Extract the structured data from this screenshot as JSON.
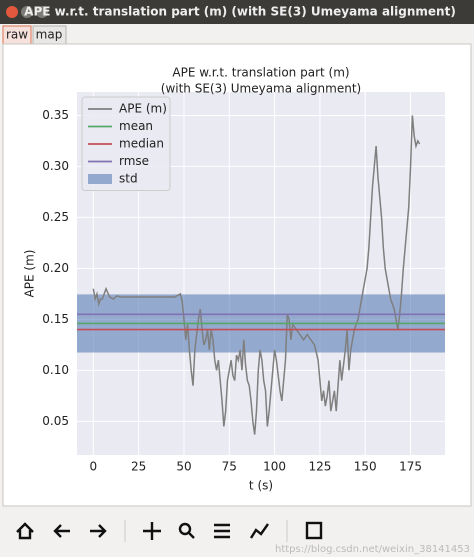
{
  "window": {
    "title": "APE w.r.t. translation part (m) (with SE(3) Umeyama alignment)",
    "tabs": [
      "raw",
      "map"
    ],
    "watermark": "https://blog.csdn.net/weixin_38141453"
  },
  "chart_data": {
    "type": "line",
    "title": "APE w.r.t. translation part (m)",
    "subtitle": "(with SE(3) Umeyama alignment)",
    "xlabel": "t (s)",
    "ylabel": "APE (m)",
    "xlim": [
      -9,
      194
    ],
    "ylim": [
      0.017,
      0.373
    ],
    "xticks": [
      0,
      25,
      50,
      75,
      100,
      125,
      150,
      175
    ],
    "yticks": [
      0.05,
      {
        "value": 0.1,
        "label": "0.10"
      },
      0.15,
      {
        "value": 0.2,
        "label": "0.20"
      },
      0.25,
      {
        "value": 0.3,
        "label": "0.30"
      },
      0.35
    ],
    "grid": true,
    "legend": "upper left",
    "series": [
      {
        "name": "APE (m)",
        "color": "#7f7f7f",
        "x": [
          0,
          1,
          2,
          3,
          4,
          5,
          7,
          9,
          11,
          13,
          15,
          20,
          25,
          30,
          35,
          40,
          45,
          48,
          49,
          50,
          51,
          52,
          53,
          54,
          55,
          56,
          57,
          58,
          59,
          60,
          61,
          62,
          63,
          64,
          65,
          66,
          67,
          68,
          69,
          70,
          71,
          72,
          73,
          74,
          75,
          76,
          77,
          78,
          79,
          80,
          81,
          82,
          83,
          84,
          85,
          86,
          87,
          88,
          89,
          90,
          91,
          92,
          93,
          94,
          95,
          96,
          97,
          98,
          99,
          100,
          101,
          102,
          103,
          104,
          105,
          106,
          107,
          108,
          109,
          110,
          112,
          114,
          116,
          118,
          120,
          122,
          124,
          125,
          126,
          127,
          128,
          129,
          130,
          131,
          132,
          133,
          134,
          135,
          136,
          137,
          138,
          139,
          140,
          141,
          142,
          143,
          144,
          145,
          146,
          147,
          148,
          149,
          150,
          151,
          152,
          153,
          154,
          155,
          156,
          157,
          158,
          159,
          160,
          161,
          162,
          163,
          164,
          165,
          166,
          167,
          168,
          169,
          170,
          171,
          172,
          173,
          174,
          175,
          176,
          177,
          178,
          179,
          180
        ],
        "values": [
          0.18,
          0.17,
          0.175,
          0.165,
          0.17,
          0.17,
          0.18,
          0.172,
          0.17,
          0.173,
          0.172,
          0.172,
          0.172,
          0.172,
          0.172,
          0.172,
          0.172,
          0.175,
          0.168,
          0.15,
          0.13,
          0.145,
          0.12,
          0.1,
          0.085,
          0.12,
          0.135,
          0.15,
          0.16,
          0.14,
          0.125,
          0.13,
          0.14,
          0.12,
          0.14,
          0.13,
          0.11,
          0.1,
          0.11,
          0.09,
          0.07,
          0.045,
          0.06,
          0.09,
          0.1,
          0.11,
          0.095,
          0.09,
          0.115,
          0.11,
          0.12,
          0.1,
          0.13,
          0.105,
          0.09,
          0.085,
          0.07,
          0.05,
          0.037,
          0.06,
          0.1,
          0.12,
          0.11,
          0.09,
          0.08,
          0.045,
          0.06,
          0.08,
          0.1,
          0.12,
          0.11,
          0.095,
          0.08,
          0.07,
          0.09,
          0.11,
          0.155,
          0.15,
          0.13,
          0.145,
          0.14,
          0.135,
          0.13,
          0.135,
          0.13,
          0.125,
          0.11,
          0.09,
          0.07,
          0.08,
          0.065,
          0.075,
          0.09,
          0.06,
          0.07,
          0.08,
          0.06,
          0.085,
          0.11,
          0.09,
          0.105,
          0.12,
          0.14,
          0.1,
          0.12,
          0.13,
          0.14,
          0.145,
          0.15,
          0.16,
          0.17,
          0.18,
          0.19,
          0.2,
          0.22,
          0.25,
          0.28,
          0.3,
          0.32,
          0.29,
          0.27,
          0.25,
          0.22,
          0.2,
          0.19,
          0.18,
          0.17,
          0.165,
          0.16,
          0.15,
          0.14,
          0.155,
          0.175,
          0.2,
          0.22,
          0.24,
          0.26,
          0.3,
          0.35,
          0.33,
          0.32,
          0.325,
          0.322
        ]
      },
      {
        "name": "mean",
        "color": "#55a868",
        "value": 0.146
      },
      {
        "name": "median",
        "color": "#c44e52",
        "value": 0.14
      },
      {
        "name": "rmse",
        "color": "#8172b2",
        "value": 0.155
      },
      {
        "name": "std",
        "color": "#4c72b0",
        "value": 0.0285,
        "band_around": "mean"
      }
    ]
  }
}
